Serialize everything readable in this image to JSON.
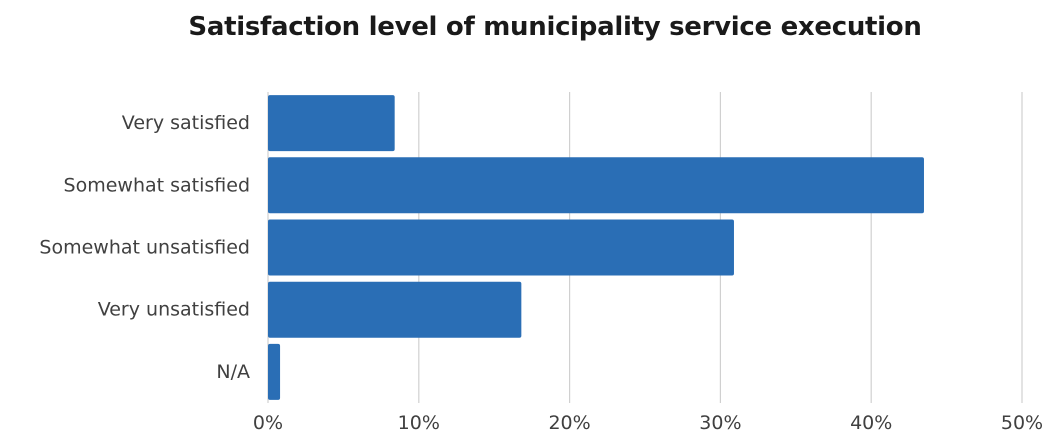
{
  "chart_data": {
    "type": "bar",
    "orientation": "horizontal",
    "title": "Satisfaction level of municipality service execution",
    "xlabel": "",
    "ylabel": "",
    "categories": [
      "Very satisfied",
      "Somewhat satisfied",
      "Somewhat unsatisfied",
      "Very unsatisfied",
      "N/A"
    ],
    "series": [
      {
        "values": [
          8.4,
          43.5,
          30.9,
          16.8,
          0.8
        ]
      }
    ],
    "xlim": [
      0,
      50
    ],
    "xticks": [
      "0%",
      "10%",
      "20%",
      "30%",
      "40%",
      "50%"
    ],
    "xtick_values": [
      0,
      10,
      20,
      30,
      40,
      50
    ],
    "grid": "vertical",
    "legend": "none",
    "bar_color": "#2A6EB5",
    "grid_color": "#D0D0D0"
  }
}
